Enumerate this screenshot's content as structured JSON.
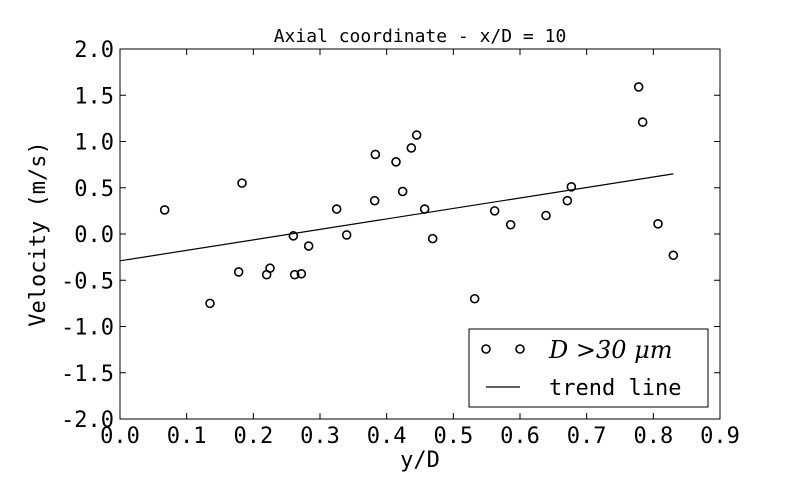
{
  "chart_data": {
    "type": "scatter",
    "title": "Axial coordinate - x/D = 10",
    "xlabel": "y/D",
    "ylabel": "Velocity (m/s)",
    "xlim": [
      0.0,
      0.9
    ],
    "ylim": [
      -2.0,
      2.0
    ],
    "xticks": [
      "0.0",
      "0.1",
      "0.2",
      "0.3",
      "0.4",
      "0.5",
      "0.6",
      "0.7",
      "0.8",
      "0.9"
    ],
    "yticks": [
      "-2.0",
      "-1.5",
      "-1.0",
      "-0.5",
      "0.0",
      "0.5",
      "1.0",
      "1.5",
      "2.0"
    ],
    "grid": false,
    "legend_position": "lower-right",
    "series": [
      {
        "name": "D>30 μm",
        "legend_label": "D >30 μm",
        "kind": "scatter",
        "marker": "open-circle",
        "color": "#000000",
        "x": [
          0.067,
          0.135,
          0.178,
          0.183,
          0.22,
          0.225,
          0.26,
          0.262,
          0.272,
          0.283,
          0.325,
          0.34,
          0.382,
          0.383,
          0.414,
          0.424,
          0.437,
          0.445,
          0.457,
          0.469,
          0.532,
          0.562,
          0.586,
          0.639,
          0.671,
          0.677,
          0.778,
          0.784,
          0.807,
          0.83
        ],
        "y": [
          0.26,
          -0.75,
          -0.41,
          0.55,
          -0.44,
          -0.37,
          -0.02,
          -0.44,
          -0.43,
          -0.13,
          0.27,
          -0.01,
          0.36,
          0.86,
          0.78,
          0.46,
          0.93,
          1.07,
          0.27,
          -0.05,
          -0.7,
          0.25,
          0.1,
          0.2,
          0.36,
          0.51,
          1.59,
          1.21,
          0.11,
          -0.23
        ]
      },
      {
        "name": "trend line",
        "legend_label": "trend line",
        "kind": "line",
        "color": "#000000",
        "x": [
          0.0,
          0.83
        ],
        "y": [
          -0.29,
          0.65
        ]
      }
    ]
  }
}
